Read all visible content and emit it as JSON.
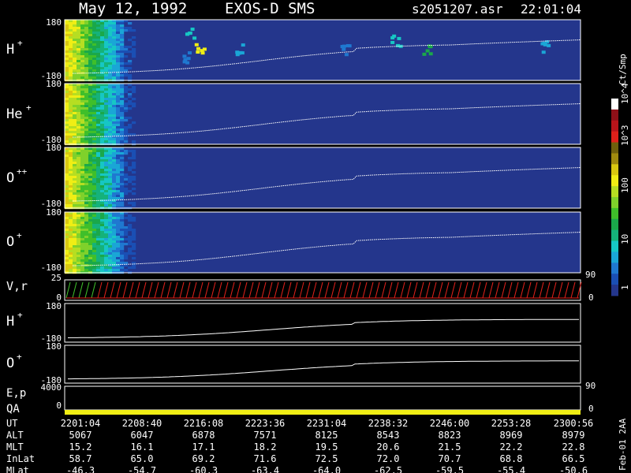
{
  "header": {
    "date": "May 12, 1992",
    "instrument": "EXOS-D SMS",
    "file": "s2051207.asr",
    "time": "22:01:04"
  },
  "colorbar": {
    "unit": "Ct/Smp",
    "ticks": [
      "1",
      "10",
      "100",
      "10^3",
      "10^4"
    ],
    "colors": [
      "#24368c",
      "#1a4fb4",
      "#1f78d0",
      "#1aa6d6",
      "#16c7c4",
      "#15b27a",
      "#1aa84a",
      "#3fbf2a",
      "#7fd12b",
      "#b6de22",
      "#f0ee14",
      "#d9c810",
      "#a08a0e",
      "#6f5f0c",
      "#e0201a",
      "#b8141a",
      "#8e1018",
      "#ffffff"
    ]
  },
  "panels": [
    {
      "id": "h-plus",
      "label": "H",
      "sup": "+",
      "ymax": "180",
      "ymin": "-180"
    },
    {
      "id": "he-plus",
      "label": "He",
      "sup": "+",
      "ymax": "180",
      "ymin": "-180"
    },
    {
      "id": "o-plus-plus",
      "label": "O",
      "sup": "++",
      "ymax": "180",
      "ymin": "-180"
    },
    {
      "id": "o-plus",
      "label": "O",
      "sup": "+",
      "ymax": "180",
      "ymin": "-180"
    }
  ],
  "right_axis": {
    "tick_90": "90",
    "tick_0": "0"
  },
  "vr_panel": {
    "label": "V,r",
    "ymax": "25",
    "ymin": "0",
    "tick_90": "90",
    "tick_0": "0"
  },
  "lower_h": {
    "label": "H",
    "sup": "+",
    "ymax": "180",
    "ymin": "-180"
  },
  "lower_o": {
    "label": "O",
    "sup": "+",
    "ymax": "180",
    "ymin": "-180"
  },
  "ep_panel": {
    "label": "E,p",
    "ymax": "4000",
    "ymin": "0",
    "tick_90": "90"
  },
  "qa_panel": {
    "label": "QA",
    "ymin": "0",
    "tick_0": "0"
  },
  "side_label": "Feb-01 2AA",
  "chart_data": {
    "type": "heatmap",
    "x_ticks": [
      "2201:04",
      "2208:40",
      "2216:08",
      "2223:36",
      "2231:04",
      "2238:32",
      "2246:00",
      "2253:28",
      "2300:56"
    ],
    "y_range": [
      -180,
      180
    ],
    "ephemeris": [
      {
        "label": "UT",
        "values": [
          "2201:04",
          "2208:40",
          "2216:08",
          "2223:36",
          "2231:04",
          "2238:32",
          "2246:00",
          "2253:28",
          "2300:56"
        ]
      },
      {
        "label": "ALT",
        "values": [
          "5067",
          "6047",
          "6878",
          "7571",
          "8125",
          "8543",
          "8823",
          "8969",
          "8979"
        ]
      },
      {
        "label": "MLT",
        "values": [
          "15.2",
          "16.1",
          "17.1",
          "18.2",
          "19.5",
          "20.6",
          "21.5",
          "22.2",
          "22.8"
        ]
      },
      {
        "label": "InLat",
        "values": [
          "58.7",
          "65.0",
          "69.2",
          "71.6",
          "72.5",
          "72.0",
          "70.7",
          "68.8",
          "66.5"
        ]
      },
      {
        "label": "MLat",
        "values": [
          "-46.3",
          "-54.7",
          "-60.3",
          "-63.4",
          "-64.0",
          "-62.5",
          "-59.5",
          "-55.4",
          "-50.6"
        ]
      }
    ]
  }
}
